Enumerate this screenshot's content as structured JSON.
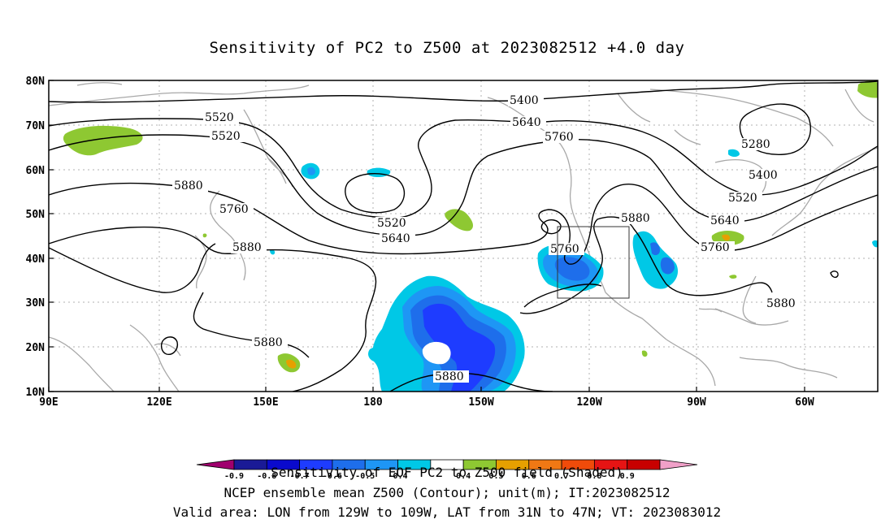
{
  "title": "Sensitivity of PC2 to Z500 at 2023082512 +4.0 day",
  "y_ticks": [
    "80N",
    "70N",
    "60N",
    "50N",
    "40N",
    "30N",
    "20N",
    "10N"
  ],
  "x_ticks": [
    "90E",
    "120E",
    "150E",
    "180",
    "150W",
    "120W",
    "90W",
    "60W"
  ],
  "contour_labels": [
    "5400",
    "5520",
    "5640",
    "5760",
    "5880",
    "5280",
    "5400",
    "5520",
    "5640",
    "5760",
    "5880",
    "5520",
    "5640",
    "5760",
    "5760",
    "5880",
    "5880",
    "5880",
    "5520",
    "5640",
    "5760",
    "5880"
  ],
  "colorbar": {
    "colors": [
      "#a0006e",
      "#1a1a96",
      "#0a0acd",
      "#1e3cff",
      "#1e6eeb",
      "#1e96f5",
      "#00c8e6",
      "#ffffff",
      "#8ec832",
      "#e6a000",
      "#f07814",
      "#f04b0a",
      "#e61414",
      "#c80000",
      "#f0a0c8"
    ],
    "tick_labels": [
      "-0.9",
      "-0.8",
      "-0.7",
      "-0.6",
      "-0.5",
      "-0.4",
      "0.4",
      "0.5",
      "0.6",
      "0.7",
      "0.8",
      "0.9"
    ],
    "caption": "Sensitivity of EOF PC2 to Z500 field (Shaded)"
  },
  "footer": {
    "line1": "Sensitivity of EOF PC2 to Z500 field (Shaded)",
    "line2": "NCEP ensemble mean Z500 (Contour); unit(m); IT:2023082512",
    "line3": "Valid area: LON from 129W to 109W, LAT from 31N to 47N; VT: 2023083012"
  }
}
